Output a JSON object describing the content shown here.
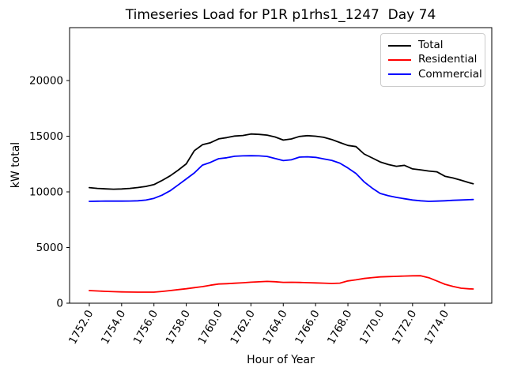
{
  "chart_data": {
    "type": "line",
    "title": "Timeseries Load for P1R p1rhs1_1247  Day 74",
    "xlabel": "Hour of Year",
    "ylabel": "kW total",
    "xlim": [
      1750.78,
      1776.9
    ],
    "ylim": [
      0,
      24750
    ],
    "grid": false,
    "legend_position": "upper right",
    "xticks": [
      1752,
      1754,
      1756,
      1758,
      1760,
      1762,
      1764,
      1766,
      1768,
      1770,
      1772,
      1774
    ],
    "xtick_labels": [
      "1752.0",
      "1754.0",
      "1756.0",
      "1758.0",
      "1760.0",
      "1762.0",
      "1764.0",
      "1766.0",
      "1768.0",
      "1770.0",
      "1772.0",
      "1774.0"
    ],
    "xtick_rotation": 60,
    "yticks": [
      0,
      5000,
      10000,
      15000,
      20000
    ],
    "ytick_labels": [
      "0",
      "5000",
      "10000",
      "15000",
      "20000"
    ],
    "x": [
      1752,
      1752.5,
      1753,
      1753.5,
      1754,
      1754.5,
      1755,
      1755.5,
      1756,
      1756.5,
      1757,
      1757.5,
      1758,
      1758.5,
      1759,
      1759.5,
      1760,
      1760.5,
      1761,
      1761.5,
      1762,
      1762.5,
      1763,
      1763.5,
      1764,
      1764.5,
      1765,
      1765.5,
      1766,
      1766.5,
      1767,
      1767.5,
      1768,
      1768.5,
      1769,
      1769.5,
      1770,
      1770.5,
      1771,
      1771.5,
      1772,
      1772.5,
      1773,
      1773.5,
      1774,
      1774.5,
      1775,
      1775.5,
      1775.75
    ],
    "series": [
      {
        "name": "Total",
        "color": "#000000",
        "values": [
          10380,
          10310,
          10270,
          10240,
          10260,
          10310,
          10390,
          10490,
          10650,
          11020,
          11440,
          11950,
          12520,
          13700,
          14230,
          14420,
          14760,
          14870,
          15010,
          15060,
          15200,
          15160,
          15100,
          14930,
          14650,
          14750,
          14980,
          15050,
          15000,
          14900,
          14700,
          14430,
          14170,
          14060,
          13400,
          13050,
          12690,
          12450,
          12300,
          12380,
          12060,
          11980,
          11870,
          11800,
          11400,
          11250,
          11040,
          10820,
          10730
        ]
      },
      {
        "name": "Residential",
        "color": "#ff0000",
        "values": [
          1135,
          1100,
          1065,
          1035,
          1015,
          1000,
          995,
          990,
          995,
          1060,
          1135,
          1220,
          1300,
          1400,
          1490,
          1620,
          1720,
          1755,
          1795,
          1840,
          1885,
          1920,
          1955,
          1930,
          1870,
          1880,
          1865,
          1845,
          1820,
          1800,
          1775,
          1800,
          2000,
          2100,
          2220,
          2300,
          2360,
          2390,
          2410,
          2440,
          2460,
          2470,
          2290,
          2000,
          1700,
          1500,
          1350,
          1290,
          1275
        ]
      },
      {
        "name": "Commercial",
        "color": "#0000ff",
        "values": [
          9150,
          9160,
          9170,
          9170,
          9170,
          9180,
          9200,
          9260,
          9420,
          9700,
          10100,
          10620,
          11160,
          11700,
          12400,
          12650,
          12980,
          13060,
          13200,
          13230,
          13250,
          13230,
          13180,
          12990,
          12810,
          12880,
          13120,
          13150,
          13100,
          12960,
          12830,
          12580,
          12150,
          11650,
          10900,
          10340,
          9860,
          9650,
          9500,
          9380,
          9270,
          9200,
          9150,
          9170,
          9200,
          9240,
          9270,
          9300,
          9310
        ]
      }
    ],
    "legend_border_color": "#cccccc",
    "axes_color": "#000000",
    "background_color": "#ffffff"
  }
}
